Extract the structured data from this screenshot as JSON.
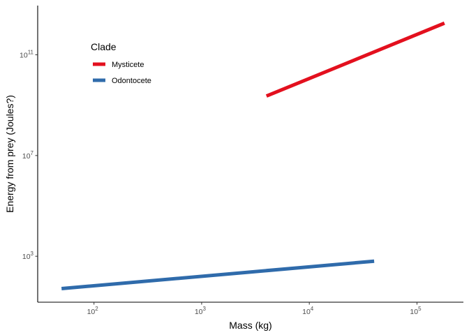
{
  "chart_data": {
    "type": "line",
    "title": "",
    "xlabel": "Mass (kg)",
    "ylabel": "Energy from prey (Joules?)",
    "x_scale": "log10",
    "y_scale": "log10",
    "xlim": [
      30,
      270000
    ],
    "ylim": [
      15,
      9000000000000
    ],
    "x_ticks": [
      {
        "value": 100,
        "base": "10",
        "exp": "2"
      },
      {
        "value": 1000,
        "base": "10",
        "exp": "3"
      },
      {
        "value": 10000,
        "base": "10",
        "exp": "4"
      },
      {
        "value": 100000,
        "base": "10",
        "exp": "5"
      }
    ],
    "y_ticks": [
      {
        "value": 1000,
        "base": "10",
        "exp": "3"
      },
      {
        "value": 10000000,
        "base": "10",
        "exp": "7"
      },
      {
        "value": 100000000000,
        "base": "10",
        "exp": "11"
      }
    ],
    "grid": false,
    "legend": {
      "title": "Clade",
      "position": "top-left"
    },
    "series": [
      {
        "name": "Mysticete",
        "color": "#E3101E",
        "points": [
          [
            4000,
            2300000000
          ],
          [
            180000,
            1800000000000
          ]
        ]
      },
      {
        "name": "Odontocete",
        "color": "#2F6BAB",
        "points": [
          [
            50,
            52
          ],
          [
            40000,
            640
          ]
        ]
      }
    ]
  }
}
